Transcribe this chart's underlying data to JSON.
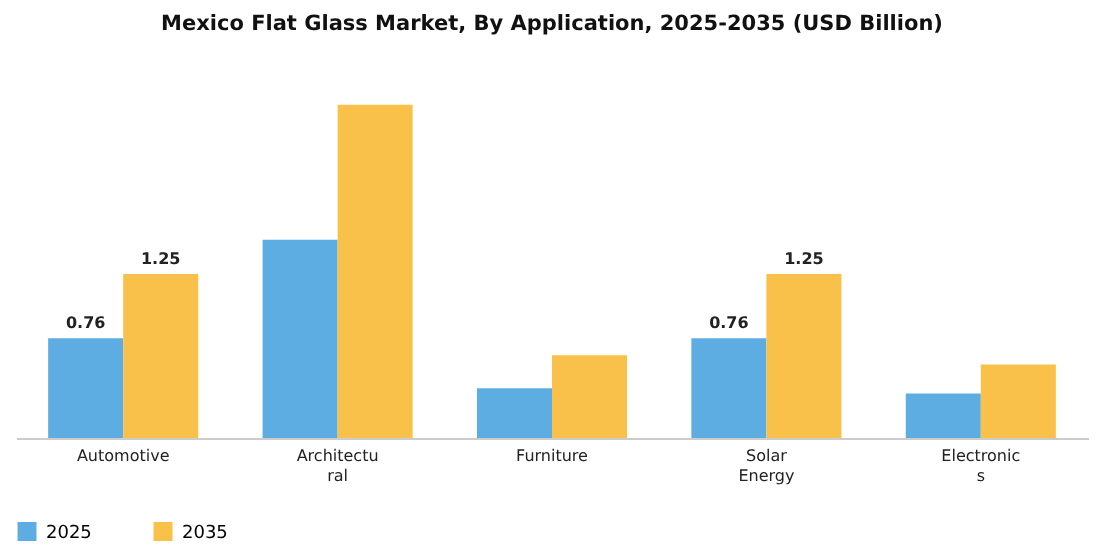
{
  "chart_data": {
    "type": "bar",
    "title": "Mexico Flat Glass Market, By Application, 2025-2035 (USD Billion)",
    "categories": [
      "Automotive",
      "Architectural",
      "Furniture",
      "Solar Energy",
      "Electronics"
    ],
    "series": [
      {
        "name": "2025",
        "color": "#5dade2",
        "values": [
          0.76,
          1.51,
          0.38,
          0.76,
          0.34
        ],
        "value_labels": [
          "0.76",
          null,
          null,
          "0.76",
          null
        ]
      },
      {
        "name": "2035",
        "color": "#f9c04a",
        "values": [
          1.25,
          2.54,
          0.63,
          1.25,
          0.56
        ],
        "value_labels": [
          "1.25",
          null,
          null,
          "1.25",
          null
        ]
      }
    ],
    "legend": "bottom",
    "grid": false
  }
}
